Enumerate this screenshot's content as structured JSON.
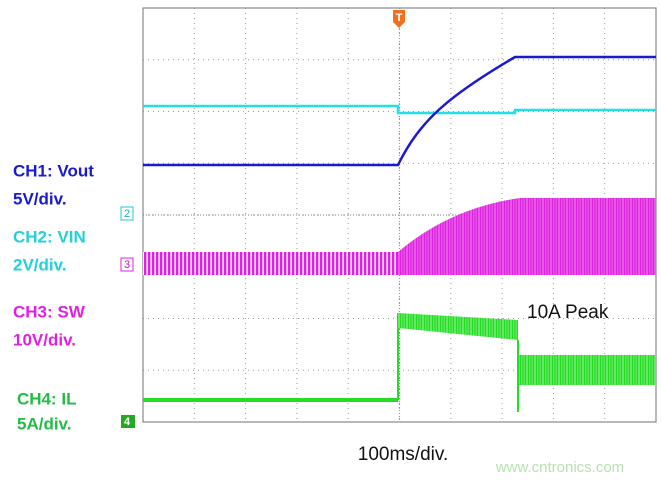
{
  "channels": [
    {
      "label": "CH1: Vout",
      "scale": "5V/div."
    },
    {
      "label": "CH2: VIN",
      "scale": "2V/div."
    },
    {
      "label": "CH3: SW",
      "scale": "10V/div."
    },
    {
      "label": "CH4: IL",
      "scale": "5A/div."
    }
  ],
  "markers": {
    "trigger": "T",
    "ch2": "2",
    "ch3": "3",
    "ch4": "4"
  },
  "annotation": "10A Peak",
  "timebase": "100ms/div.",
  "watermark": "www.cntronics.com"
}
